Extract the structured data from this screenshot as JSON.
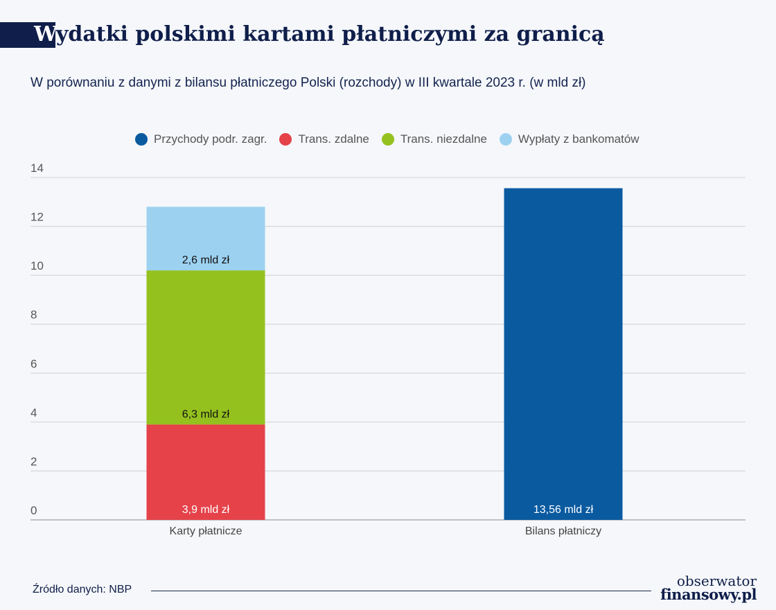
{
  "title": {
    "first_letter": "W",
    "rest": "ydatki polskimi kartami płatniczymi za granicą"
  },
  "subtitle": "W porównaniu z danymi z bilansu płatniczego Polski (rozchody) w III kwartale 2023 r. (w mld zł)",
  "legend": [
    {
      "label": "Przychody podr. zagr.",
      "color": "#0a5aa0"
    },
    {
      "label": "Trans. zdalne",
      "color": "#e5424a"
    },
    {
      "label": "Trans. niezdalne",
      "color": "#95c11f"
    },
    {
      "label": "Wypłaty z bankomatów",
      "color": "#9dd1f0"
    }
  ],
  "chart_data": {
    "type": "bar",
    "stacked": true,
    "categories": [
      "Karty płatnicze",
      "Bilans płatniczy"
    ],
    "series": [
      {
        "name": "Przychody podr. zagr.",
        "color": "#0a5aa0",
        "values": [
          0,
          13.56
        ],
        "labels": [
          "",
          "13,56 mld zł"
        ]
      },
      {
        "name": "Trans. zdalne",
        "color": "#e5424a",
        "values": [
          3.9,
          0
        ],
        "labels": [
          "3,9 mld zł",
          ""
        ]
      },
      {
        "name": "Trans. niezdalne",
        "color": "#95c11f",
        "values": [
          6.3,
          0
        ],
        "labels": [
          "6,3 mld zł",
          ""
        ]
      },
      {
        "name": "Wypłaty z bankomatów",
        "color": "#9dd1f0",
        "values": [
          2.6,
          0
        ],
        "labels": [
          "2,6 mld zł",
          ""
        ]
      }
    ],
    "ylim": [
      0,
      14
    ],
    "yticks": [
      "0",
      "2",
      "4",
      "6",
      "8",
      "10",
      "12",
      "14"
    ],
    "grid": true,
    "legend_position": "top"
  },
  "footer": {
    "source": "Źródło danych: NBP",
    "logo_top": "obserwator",
    "logo_bottom": "finansowy.pl"
  }
}
